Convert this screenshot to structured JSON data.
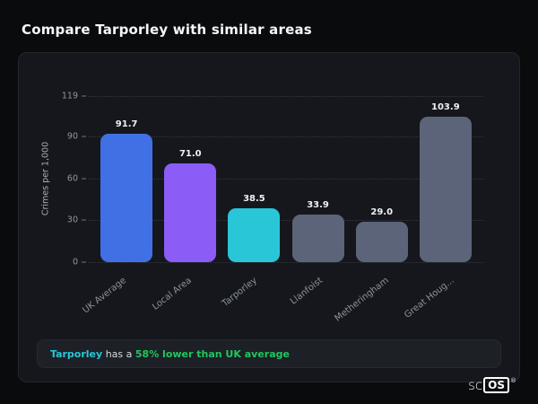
{
  "header": {
    "title": "Compare Tarporley with similar areas"
  },
  "chart_data": {
    "type": "bar",
    "title": "",
    "categories": [
      "UK Average",
      "Local Area",
      "Tarporley",
      "Llanfoist",
      "Metheringham",
      "Great Houg..."
    ],
    "values": [
      91.7,
      71.0,
      38.5,
      33.9,
      29.0,
      103.9
    ],
    "value_labels": [
      "91.7",
      "71.0",
      "38.5",
      "33.9",
      "29.0",
      "103.9"
    ],
    "bar_colors": [
      "#4170e4",
      "#8b5cf6",
      "#29c6d8",
      "#5b6478",
      "#5b6478",
      "#5b6478"
    ],
    "xlabel": "",
    "ylabel": "Crimes per 1,000",
    "yticks": [
      0,
      30,
      60,
      90,
      119
    ],
    "ylim": [
      0,
      119
    ],
    "grid": "horizontal-dotted",
    "legend": "none"
  },
  "footer": {
    "highlight": "Tarporley",
    "middle": " has a ",
    "stat": "58% lower than UK average",
    "highlight_color": "#29c6d8",
    "stat_color": "#22c55e"
  },
  "watermark": {
    "prefix": "sc",
    "boxed": "OS",
    "registered": "®"
  }
}
